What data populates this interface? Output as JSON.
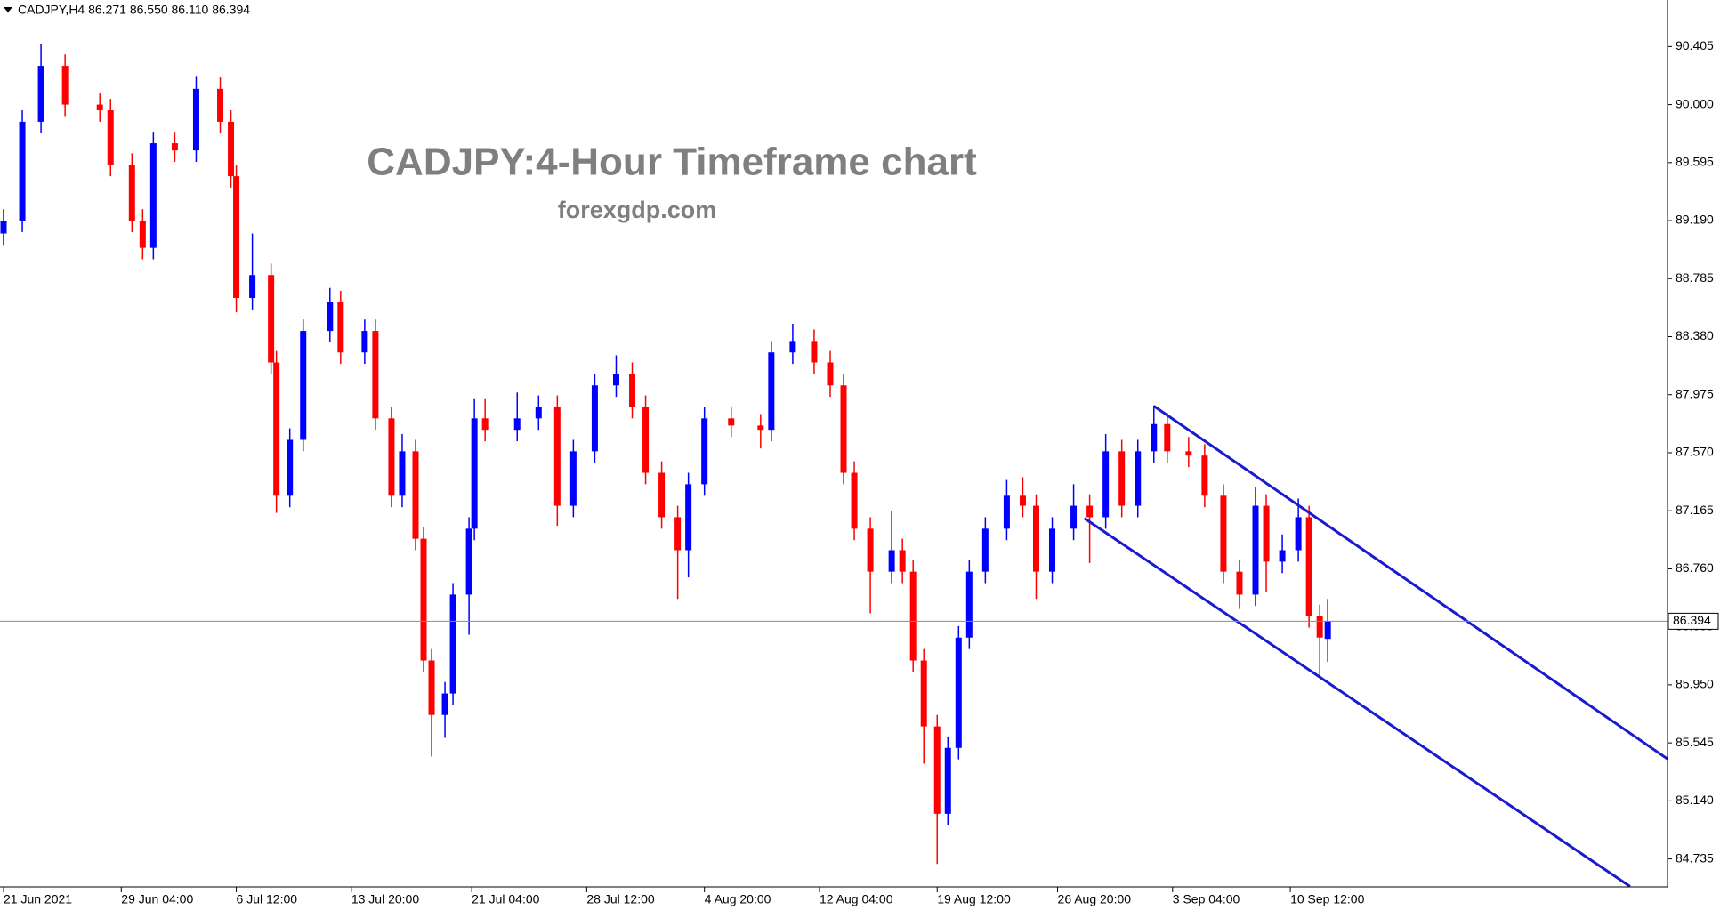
{
  "chart_data": {
    "type": "candlestick",
    "header": "CADJPY,H4  86.271 86.550 86.110 86.394",
    "title": "CADJPY:4-Hour Timeframe chart",
    "subtitle": "forexgdp.com",
    "up_color": "#0000ff",
    "down_color": "#ff0000",
    "x": [
      0,
      7,
      14,
      23,
      36,
      40,
      48,
      52,
      56,
      64,
      72,
      81,
      85,
      87,
      93,
      100,
      102,
      107,
      112,
      122,
      126,
      135,
      139,
      145,
      149,
      154,
      157,
      160,
      165,
      168,
      174,
      176,
      180,
      192,
      200,
      207,
      213,
      221,
      229,
      235,
      240,
      246,
      252,
      256,
      262,
      272,
      283,
      287,
      295,
      303,
      309,
      314,
      318,
      324,
      332,
      336,
      340,
      344,
      349,
      353,
      357,
      361,
      367,
      375,
      381,
      386,
      392,
      400,
      406,
      412,
      418,
      424,
      430,
      435,
      443,
      449,
      456,
      462,
      468,
      472,
      478,
      484,
      488,
      492,
      495
    ],
    "open": [
      89.1,
      89.19,
      89.88,
      90.27,
      90.0,
      89.96,
      89.58,
      89.19,
      89.0,
      89.73,
      89.68,
      90.11,
      89.88,
      89.5,
      88.65,
      88.81,
      88.2,
      87.27,
      87.66,
      88.42,
      88.62,
      88.27,
      88.42,
      87.81,
      87.27,
      87.58,
      86.97,
      86.12,
      85.74,
      85.89,
      86.58,
      87.04,
      87.81,
      87.73,
      87.81,
      87.89,
      87.2,
      87.58,
      88.04,
      88.12,
      87.89,
      87.43,
      87.12,
      86.89,
      87.35,
      87.81,
      87.76,
      87.73,
      88.27,
      88.35,
      88.2,
      88.04,
      87.43,
      87.04,
      86.74,
      86.89,
      86.74,
      86.12,
      85.66,
      85.05,
      85.51,
      86.28,
      86.74,
      87.04,
      87.27,
      87.2,
      86.74,
      87.04,
      87.2,
      87.12,
      87.58,
      87.2,
      87.58,
      87.77,
      87.58,
      87.55,
      87.27,
      86.74,
      86.58,
      87.2,
      86.81,
      86.89,
      87.12,
      86.43,
      86.271
    ],
    "high": [
      89.27,
      89.96,
      90.42,
      90.35,
      90.08,
      90.04,
      89.66,
      89.27,
      89.81,
      89.81,
      90.2,
      90.19,
      89.96,
      89.58,
      89.1,
      88.89,
      88.28,
      87.74,
      88.5,
      88.72,
      88.7,
      88.5,
      88.5,
      87.89,
      87.7,
      87.66,
      87.05,
      86.2,
      85.97,
      86.66,
      87.12,
      87.95,
      87.95,
      87.99,
      87.97,
      87.97,
      87.66,
      88.12,
      88.25,
      88.2,
      87.97,
      87.51,
      87.2,
      87.43,
      87.89,
      87.89,
      87.84,
      88.35,
      88.47,
      88.43,
      88.28,
      88.12,
      87.51,
      87.12,
      87.16,
      86.97,
      86.82,
      86.2,
      85.74,
      85.59,
      86.36,
      86.82,
      87.12,
      87.38,
      87.4,
      87.28,
      87.12,
      87.35,
      87.28,
      87.7,
      87.66,
      87.66,
      87.9,
      87.85,
      87.68,
      87.63,
      87.35,
      86.82,
      87.33,
      87.28,
      87.0,
      87.25,
      87.2,
      86.51,
      86.55
    ],
    "low": [
      89.02,
      89.11,
      89.8,
      89.92,
      89.88,
      89.5,
      89.11,
      88.92,
      88.92,
      89.6,
      89.6,
      89.8,
      89.42,
      88.55,
      88.57,
      88.12,
      87.15,
      87.19,
      87.58,
      88.34,
      88.19,
      88.19,
      87.73,
      87.19,
      87.19,
      86.89,
      86.04,
      85.45,
      85.58,
      85.81,
      86.3,
      86.96,
      87.65,
      87.65,
      87.73,
      87.06,
      87.12,
      87.5,
      87.96,
      87.81,
      87.35,
      87.04,
      86.55,
      86.7,
      87.27,
      87.68,
      87.6,
      87.65,
      88.19,
      88.12,
      87.96,
      87.35,
      86.96,
      86.45,
      86.66,
      86.66,
      86.04,
      85.4,
      84.7,
      84.97,
      85.43,
      86.2,
      86.66,
      86.96,
      87.12,
      86.55,
      86.66,
      86.96,
      86.8,
      87.04,
      87.12,
      87.12,
      87.5,
      87.5,
      87.47,
      87.19,
      86.66,
      86.48,
      86.5,
      86.6,
      86.73,
      86.81,
      86.35,
      86.0,
      86.11
    ],
    "close": [
      89.19,
      89.88,
      90.27,
      90.0,
      89.96,
      89.58,
      89.19,
      89.0,
      89.73,
      89.68,
      90.11,
      89.88,
      89.5,
      88.65,
      88.81,
      88.2,
      87.27,
      87.66,
      88.42,
      88.62,
      88.27,
      88.42,
      87.81,
      87.27,
      87.58,
      86.97,
      86.12,
      85.74,
      85.89,
      86.58,
      87.04,
      87.81,
      87.73,
      87.81,
      87.89,
      87.2,
      87.58,
      88.04,
      88.12,
      87.89,
      87.43,
      87.12,
      86.89,
      87.35,
      87.81,
      87.76,
      87.73,
      88.27,
      88.35,
      88.2,
      88.04,
      87.43,
      87.04,
      86.74,
      86.89,
      86.74,
      86.12,
      85.66,
      85.05,
      85.51,
      86.28,
      86.74,
      87.04,
      87.27,
      87.2,
      86.74,
      87.04,
      87.2,
      87.12,
      87.58,
      87.2,
      87.58,
      87.77,
      87.58,
      87.55,
      87.27,
      86.74,
      86.58,
      87.2,
      86.81,
      86.89,
      87.12,
      86.43,
      86.28,
      86.394
    ],
    "xlim": [
      0,
      622
    ],
    "ylim": [
      84.54,
      90.73
    ],
    "xticks": [
      {
        "value": 0,
        "label": "21 Jun 2021"
      },
      {
        "value": 44,
        "label": "29 Jun 04:00"
      },
      {
        "value": 87,
        "label": "6 Jul 12:00"
      },
      {
        "value": 130,
        "label": "13 Jul 20:00"
      },
      {
        "value": 175,
        "label": "21 Jul 04:00"
      },
      {
        "value": 218,
        "label": "28 Jul 12:00"
      },
      {
        "value": 262,
        "label": "4 Aug 20:00"
      },
      {
        "value": 305,
        "label": "12 Aug 04:00"
      },
      {
        "value": 349,
        "label": "19 Aug 12:00"
      },
      {
        "value": 394,
        "label": "26 Aug 20:00"
      },
      {
        "value": 437,
        "label": "3 Sep 04:00"
      },
      {
        "value": 481,
        "label": "10 Sep 12:00"
      }
    ],
    "yticks": [
      90.405,
      {
        "value": 90,
        "label": "90.000"
      },
      89.595,
      {
        "value": 89.19,
        "label": "89.190"
      },
      88.785,
      {
        "value": 88.38,
        "label": "88.380"
      },
      87.975,
      {
        "value": 87.57,
        "label": "87.570"
      },
      87.165,
      {
        "value": 86.76,
        "label": "86.760"
      },
      86.355,
      {
        "value": 85.95,
        "label": "85.950"
      },
      85.545,
      {
        "value": 85.14,
        "label": "85.140"
      },
      84.735
    ],
    "price_line": 86.394,
    "trendlines": [
      {
        "x": [
          430,
          622
        ],
        "y": [
          87.896,
          85.433
        ],
        "color": "#1a1ad0"
      },
      {
        "x": [
          404,
          608
        ],
        "y": [
          87.113,
          84.543
        ],
        "color": "#1a1ad0"
      }
    ]
  }
}
